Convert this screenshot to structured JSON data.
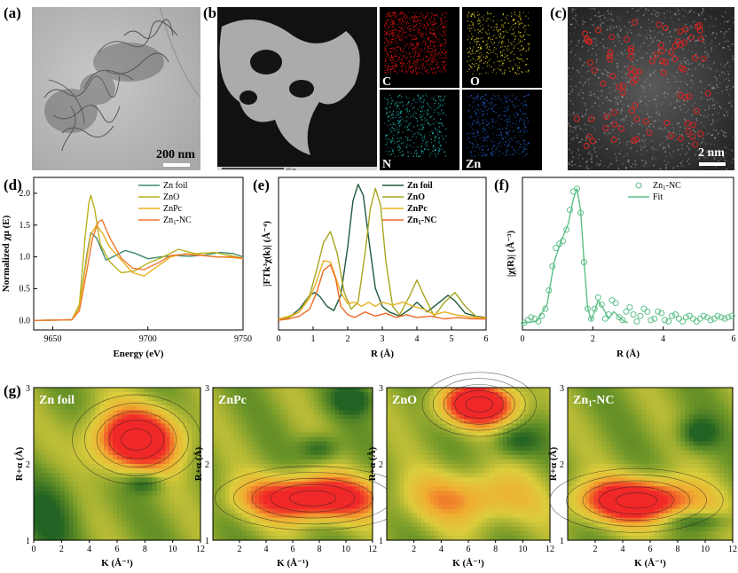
{
  "panel_labels": {
    "a": "(a)",
    "b": "(b)",
    "c": "(c)",
    "d": "(d)",
    "e": "(e)",
    "f": "(f)",
    "g": "(g)"
  },
  "images": {
    "a": {
      "scale_bar": "200 nm"
    },
    "b": {
      "scale_text": "200 nm",
      "elements": [
        "C",
        "O",
        "N",
        "Zn"
      ],
      "colors": {
        "C": "#e01010",
        "O": "#e0d020",
        "N": "#20c0c0",
        "Zn": "#2060d0"
      }
    },
    "c": {
      "scale_bar": "2 nm"
    }
  },
  "chart_data": [
    {
      "id": "d",
      "type": "line",
      "xlabel": "Energy (eV)",
      "ylabel": "Normalized χμ (E)",
      "xlim": [
        9640,
        9750
      ],
      "ylim": [
        -0.15,
        2.25
      ],
      "xticks": [
        9650,
        9700,
        9750
      ],
      "yticks": [
        0.0,
        0.5,
        1.0,
        1.5,
        2.0
      ],
      "ytick_labels": [
        "0.0",
        "0.5",
        "1.0",
        "1.5",
        "2.0"
      ],
      "legend_position": "top-right",
      "series": [
        {
          "name": "Zn foil",
          "color": "#3f8a6e",
          "x": [
            9640,
            9660,
            9664,
            9668,
            9670,
            9673,
            9678,
            9683,
            9688,
            9693,
            9700,
            9707,
            9714,
            9722,
            9730,
            9738,
            9745,
            9750
          ],
          "y": [
            0,
            0.01,
            0.2,
            1.05,
            1.38,
            1.3,
            0.95,
            1.02,
            1.1,
            1.06,
            0.97,
            1.0,
            1.02,
            1.01,
            1.03,
            1.07,
            1.05,
            1.0
          ]
        },
        {
          "name": "ZnO",
          "color": "#b9b21e",
          "x": [
            9640,
            9660,
            9664,
            9667,
            9669,
            9670,
            9672,
            9675,
            9680,
            9686,
            9693,
            9700,
            9708,
            9716,
            9725,
            9735,
            9743,
            9750
          ],
          "y": [
            0,
            0.01,
            0.25,
            1.3,
            1.85,
            1.97,
            1.75,
            1.2,
            0.92,
            0.75,
            0.78,
            0.9,
            1.0,
            1.12,
            1.05,
            1.07,
            1.02,
            0.98
          ]
        },
        {
          "name": "ZnPc",
          "color": "#e8b020",
          "x": [
            9640,
            9660,
            9664,
            9668,
            9670,
            9673,
            9676,
            9680,
            9686,
            9692,
            9698,
            9705,
            9712,
            9720,
            9728,
            9736,
            9744,
            9750
          ],
          "y": [
            0,
            0.01,
            0.2,
            1.0,
            1.35,
            1.5,
            1.38,
            1.15,
            0.95,
            0.75,
            0.7,
            0.85,
            1.0,
            1.05,
            1.03,
            1.0,
            0.99,
            0.97
          ]
        },
        {
          "name": "Zn$_1$-NC",
          "label": "Zn1-NC",
          "color": "#f07830",
          "x": [
            9640,
            9660,
            9664,
            9668,
            9671,
            9674,
            9676,
            9680,
            9686,
            9692,
            9698,
            9705,
            9712,
            9720,
            9728,
            9736,
            9744,
            9750
          ],
          "y": [
            0,
            0.01,
            0.15,
            0.8,
            1.3,
            1.55,
            1.58,
            1.3,
            0.98,
            0.82,
            0.8,
            0.9,
            1.02,
            1.04,
            1.02,
            1.0,
            1.0,
            0.98
          ]
        }
      ]
    },
    {
      "id": "e",
      "type": "line",
      "xlabel": "R (Å)",
      "ylabel": "|FTk³χ(k)| (Å⁻⁴)",
      "xlim": [
        0,
        6
      ],
      "ylim": [
        -0.05,
        1.05
      ],
      "xticks": [
        0,
        1,
        2,
        3,
        4,
        5,
        6
      ],
      "legend_position": "top-right",
      "series": [
        {
          "name": "Zn foil",
          "color": "#1f5a3a",
          "x": [
            0,
            0.3,
            0.6,
            0.9,
            1.05,
            1.2,
            1.4,
            1.6,
            1.8,
            2.0,
            2.15,
            2.3,
            2.45,
            2.6,
            2.8,
            3.0,
            3.2,
            3.5,
            3.8,
            4.0,
            4.3,
            4.6,
            4.9,
            5.1,
            5.4,
            5.7,
            6.0
          ],
          "y": [
            0.02,
            0.04,
            0.1,
            0.2,
            0.22,
            0.19,
            0.12,
            0.09,
            0.2,
            0.55,
            0.88,
            1.0,
            0.92,
            0.62,
            0.25,
            0.12,
            0.08,
            0.05,
            0.1,
            0.15,
            0.08,
            0.14,
            0.2,
            0.16,
            0.07,
            0.05,
            0.04
          ]
        },
        {
          "name": "ZnO",
          "color": "#a6a61e",
          "x": [
            0,
            0.3,
            0.6,
            0.9,
            1.1,
            1.3,
            1.5,
            1.7,
            1.9,
            2.1,
            2.3,
            2.5,
            2.65,
            2.8,
            2.95,
            3.1,
            3.3,
            3.5,
            3.8,
            4.0,
            4.2,
            4.5,
            4.8,
            5.1,
            5.4,
            5.7,
            6.0
          ],
          "y": [
            0.02,
            0.04,
            0.08,
            0.2,
            0.38,
            0.58,
            0.66,
            0.5,
            0.22,
            0.1,
            0.15,
            0.5,
            0.82,
            0.97,
            0.85,
            0.45,
            0.12,
            0.06,
            0.2,
            0.31,
            0.2,
            0.05,
            0.15,
            0.22,
            0.12,
            0.05,
            0.03
          ]
        },
        {
          "name": "ZnPc",
          "color": "#e8b020",
          "x": [
            0,
            0.3,
            0.6,
            0.9,
            1.1,
            1.3,
            1.5,
            1.65,
            1.8,
            2.0,
            2.2,
            2.4,
            2.6,
            2.8,
            3.0,
            3.3,
            3.6,
            3.9,
            4.2,
            4.5,
            4.8,
            5.1,
            5.4,
            5.7,
            6.0
          ],
          "y": [
            0.03,
            0.05,
            0.08,
            0.18,
            0.3,
            0.45,
            0.44,
            0.33,
            0.22,
            0.14,
            0.15,
            0.12,
            0.15,
            0.12,
            0.15,
            0.13,
            0.15,
            0.12,
            0.1,
            0.06,
            0.08,
            0.06,
            0.05,
            0.04,
            0.04
          ]
        },
        {
          "name": "Zn$_1$-NC",
          "label": "Zn1-NC",
          "color": "#f06a28",
          "x": [
            0,
            0.3,
            0.6,
            0.9,
            1.1,
            1.3,
            1.5,
            1.65,
            1.8,
            2.0,
            2.2,
            2.5,
            2.8,
            3.1,
            3.4,
            3.7,
            4.0,
            4.4,
            4.8,
            5.2,
            5.6,
            6.0
          ],
          "y": [
            0.02,
            0.03,
            0.05,
            0.1,
            0.22,
            0.38,
            0.42,
            0.32,
            0.12,
            0.06,
            0.04,
            0.08,
            0.05,
            0.07,
            0.04,
            0.06,
            0.04,
            0.05,
            0.03,
            0.04,
            0.03,
            0.03
          ]
        }
      ]
    },
    {
      "id": "f",
      "type": "scatter",
      "xlabel": "R (Å)",
      "ylabel": "|χ(R)| (Å⁻³)",
      "xlim": [
        0,
        6
      ],
      "ylim": [
        -0.03,
        1.05
      ],
      "xticks": [
        0,
        2,
        4,
        6
      ],
      "legend_position": "top-right",
      "series": [
        {
          "name": "Zn$_1$-NC",
          "label": "Zn1-NC",
          "color": "#5cc088",
          "marker": "open-circle",
          "x": [
            0.05,
            0.15,
            0.25,
            0.35,
            0.45,
            0.55,
            0.65,
            0.75,
            0.85,
            0.95,
            1.05,
            1.15,
            1.25,
            1.35,
            1.45,
            1.55,
            1.65,
            1.75,
            1.85,
            1.95,
            2.05,
            2.15,
            2.25,
            2.35,
            2.45,
            2.55,
            2.65,
            2.75,
            2.85,
            2.95,
            3.05,
            3.15,
            3.25,
            3.35,
            3.45,
            3.55,
            3.65,
            3.75,
            3.85,
            3.95,
            4.05,
            4.15,
            4.25,
            4.35,
            4.45,
            4.55,
            4.65,
            4.75,
            4.85,
            4.95,
            5.05,
            5.15,
            5.25,
            5.35,
            5.45,
            5.55,
            5.65,
            5.75,
            5.85,
            5.95
          ],
          "y": [
            0.02,
            0.04,
            0.06,
            0.05,
            0.03,
            0.07,
            0.12,
            0.25,
            0.42,
            0.55,
            0.58,
            0.6,
            0.68,
            0.82,
            0.95,
            0.97,
            0.8,
            0.45,
            0.12,
            0.05,
            0.12,
            0.2,
            0.15,
            0.05,
            0.08,
            0.18,
            0.16,
            0.06,
            0.04,
            0.1,
            0.13,
            0.08,
            0.03,
            0.07,
            0.12,
            0.1,
            0.04,
            0.05,
            0.1,
            0.09,
            0.04,
            0.03,
            0.07,
            0.08,
            0.05,
            0.03,
            0.06,
            0.07,
            0.05,
            0.03,
            0.05,
            0.07,
            0.06,
            0.04,
            0.05,
            0.07,
            0.06,
            0.05,
            0.06,
            0.07
          ]
        },
        {
          "name": "Fit",
          "color": "#5cc088",
          "marker": "line",
          "x": [
            0.0,
            0.4,
            0.7,
            0.9,
            1.1,
            1.3,
            1.45,
            1.55,
            1.65,
            1.75,
            1.85,
            1.95,
            2.05,
            2.15,
            2.3,
            2.45,
            2.6,
            2.75,
            2.9,
            3.0
          ],
          "y": [
            0.02,
            0.03,
            0.15,
            0.45,
            0.6,
            0.72,
            0.9,
            0.97,
            0.82,
            0.46,
            0.13,
            0.04,
            0.1,
            0.18,
            0.12,
            0.05,
            0.1,
            0.06,
            0.03,
            0.02
          ]
        }
      ]
    },
    {
      "id": "g",
      "type": "heatmap",
      "ylabel": "R+α (Å)",
      "xlabel": "K (Å⁻¹)",
      "xlim": [
        0,
        12
      ],
      "ylim": [
        1,
        3
      ],
      "xticks": [
        0,
        2,
        4,
        6,
        8,
        10,
        12
      ],
      "yticks": [
        1,
        2,
        3
      ],
      "maps": [
        {
          "title": "Zn foil",
          "peaks": [
            {
              "k": 7.4,
              "r": 2.32,
              "w": 2.2,
              "h": 0.28,
              "amp": 1.0
            },
            {
              "k": 8.0,
              "r": 1.75,
              "w": 0.9,
              "h": 0.1,
              "amp": -0.35
            },
            {
              "k": 1.0,
              "r": 1.3,
              "w": 1.5,
              "h": 0.4,
              "amp": -0.3
            }
          ]
        },
        {
          "title": "ZnPc",
          "peaks": [
            {
              "k": 7.5,
              "r": 1.55,
              "w": 3.5,
              "h": 0.2,
              "amp": 1.0
            },
            {
              "k": 8.0,
              "r": 2.2,
              "w": 1.0,
              "h": 0.12,
              "amp": -0.35
            },
            {
              "k": 10.5,
              "r": 2.85,
              "w": 1.2,
              "h": 0.15,
              "amp": -0.4
            }
          ]
        },
        {
          "title": "ZnO",
          "peaks": [
            {
              "k": 6.8,
              "r": 2.78,
              "w": 2.0,
              "h": 0.2,
              "amp": 1.0
            },
            {
              "k": 6.0,
              "r": 1.55,
              "w": 3.5,
              "h": 0.25,
              "amp": 0.45
            },
            {
              "k": 9.5,
              "r": 2.3,
              "w": 1.2,
              "h": 0.15,
              "amp": -0.35
            }
          ]
        },
        {
          "title": "Zn$_1$-NC",
          "label": "Zn1-NC",
          "peaks": [
            {
              "k": 5.0,
              "r": 1.52,
              "w": 3.0,
              "h": 0.2,
              "amp": 1.0
            },
            {
              "k": 9.5,
              "r": 2.4,
              "w": 1.0,
              "h": 0.15,
              "amp": -0.4
            },
            {
              "k": 9.5,
              "r": 1.25,
              "w": 1.5,
              "h": 0.08,
              "amp": -0.3
            }
          ]
        }
      ]
    }
  ]
}
